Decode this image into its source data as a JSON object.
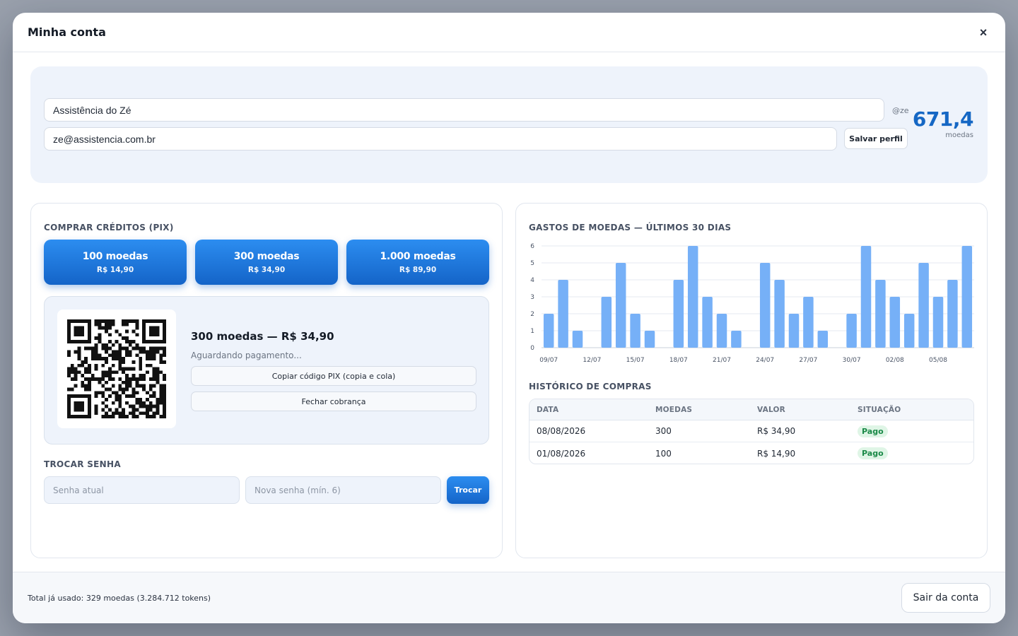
{
  "modal": {
    "title": "Minha conta",
    "close_label": "×"
  },
  "profile": {
    "name_value": "Assistência do Zé",
    "email_value": "ze@assistencia.com.br",
    "handle": "@ze",
    "save_label": "Salvar perfil",
    "balance_value": "671,4",
    "balance_unit": "moedas"
  },
  "buy": {
    "title": "COMPRAR CRÉDITOS (PIX)",
    "packages": [
      {
        "name": "100 moedas",
        "price": "R$ 14,90"
      },
      {
        "name": "300 moedas",
        "price": "R$ 34,90"
      },
      {
        "name": "1.000 moedas",
        "price": "R$ 89,90"
      }
    ],
    "pix": {
      "title": "300 moedas — R$ 34,90",
      "status": "Aguardando pagamento...",
      "copy_label": "Copiar código PIX (copia e cola)",
      "close_label": "Fechar cobrança"
    }
  },
  "password": {
    "title": "TROCAR SENHA",
    "current_placeholder": "Senha atual",
    "new_placeholder": "Nova senha (mín. 6)",
    "submit_label": "Trocar"
  },
  "spending": {
    "title": "GASTOS DE MOEDAS — ÚLTIMOS 30 DIAS"
  },
  "chart_data": {
    "type": "bar",
    "title": "GASTOS DE MOEDAS — ÚLTIMOS 30 DIAS",
    "xlabel": "",
    "ylabel": "",
    "ylim": [
      0,
      6
    ],
    "yticks": [
      0,
      1,
      2,
      3,
      4,
      5,
      6
    ],
    "grid": true,
    "color": "#76b0f7",
    "categories": [
      "09/07",
      "10/07",
      "11/07",
      "12/07",
      "13/07",
      "14/07",
      "15/07",
      "16/07",
      "17/07",
      "18/07",
      "19/07",
      "20/07",
      "21/07",
      "22/07",
      "23/07",
      "24/07",
      "25/07",
      "26/07",
      "27/07",
      "28/07",
      "29/07",
      "30/07",
      "31/07",
      "01/08",
      "02/08",
      "03/08",
      "04/08",
      "05/08",
      "06/08",
      "07/08"
    ],
    "tick_labels": [
      "09/07",
      "12/07",
      "15/07",
      "18/07",
      "21/07",
      "24/07",
      "27/07",
      "30/07",
      "02/08",
      "05/08"
    ],
    "values": [
      2,
      4,
      1,
      0,
      3,
      5,
      2,
      1,
      0,
      4,
      6,
      3,
      2,
      1,
      0,
      5,
      4,
      2,
      3,
      1,
      0,
      2,
      6,
      4,
      3,
      2,
      5,
      3,
      4,
      6
    ]
  },
  "history": {
    "title": "HISTÓRICO DE COMPRAS",
    "columns": [
      "DATA",
      "MOEDAS",
      "VALOR",
      "SITUAÇÃO"
    ],
    "rows": [
      {
        "date": "08/08/2026",
        "coins": "300",
        "value": "R$ 34,90",
        "status": "Pago"
      },
      {
        "date": "01/08/2026",
        "coins": "100",
        "value": "R$ 14,90",
        "status": "Pago"
      }
    ]
  },
  "footer": {
    "usage_text": "Total já usado: 329 moedas (3.284.712 tokens)",
    "logout_label": "Sair da conta"
  }
}
